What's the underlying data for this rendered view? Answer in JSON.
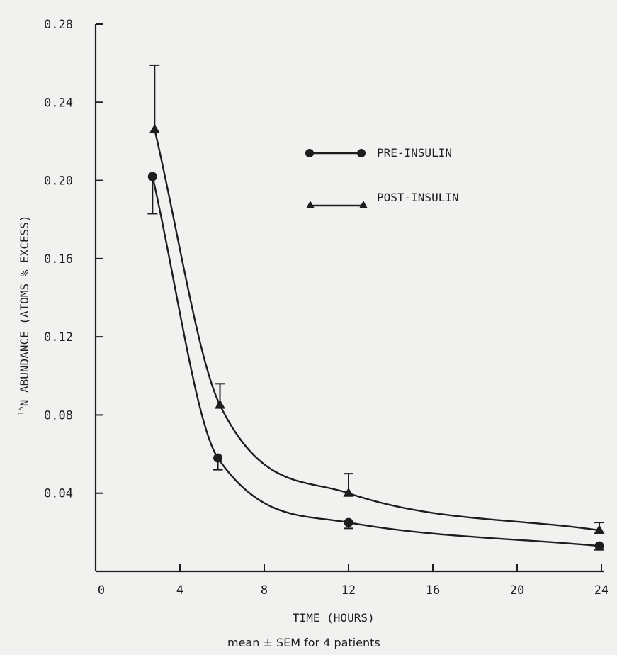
{
  "chart_data": {
    "type": "line",
    "xlabel": "TIME (HOURS)",
    "ylabel_sup": "15",
    "ylabel": "N ABUNDANCE (ATOMS % EXCESS)",
    "note": "mean ± SEM for 4 patients",
    "xlim": [
      0,
      24
    ],
    "ylim": [
      0,
      0.28
    ],
    "x_ticks": [
      0,
      4,
      8,
      12,
      16,
      20,
      24
    ],
    "x_tick_labels": [
      "0",
      "4",
      "8",
      "12",
      "16",
      "20",
      "24"
    ],
    "y_ticks": [
      0.04,
      0.08,
      0.12,
      0.16,
      0.2,
      0.24,
      0.28
    ],
    "y_tick_labels": [
      "0.04",
      "0.08",
      "0.12",
      "0.16",
      "0.20",
      "0.24",
      "0.28"
    ],
    "legend_position": "top-right",
    "series": [
      {
        "name": "PRE-INSULIN",
        "marker": "circle",
        "x": [
          2.7,
          5.8,
          12,
          23.9
        ],
        "y": [
          0.202,
          0.058,
          0.025,
          0.013
        ],
        "err": [
          0.019,
          0.006,
          0.003,
          0.002
        ]
      },
      {
        "name": "POST-INSULIN",
        "marker": "triangle",
        "x": [
          2.8,
          5.9,
          12,
          23.9
        ],
        "y": [
          0.226,
          0.085,
          0.04,
          0.021
        ],
        "err": [
          0.033,
          0.011,
          0.01,
          0.004
        ]
      }
    ],
    "colors": {
      "ink": "#1d1d1d",
      "background": "#f1f1ef"
    }
  }
}
